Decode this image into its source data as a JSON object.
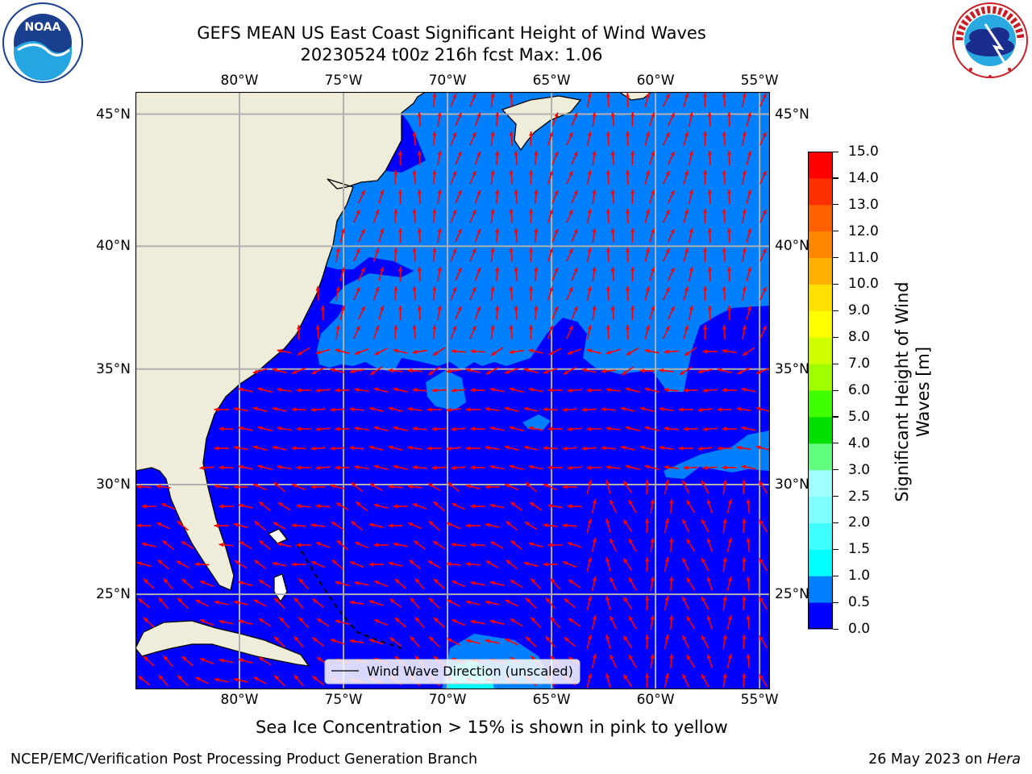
{
  "title": {
    "line1": "GEFS MEAN US East Coast Significant Height of Wind Waves",
    "line2": "20230524 t00z 216h fcst   Max: 1.06"
  },
  "logos": {
    "noaa": {
      "text": "NOAA",
      "ring": "NATIONAL OCEANIC AND ATMOSPHERIC ADMINISTRATION • U.S. DEPARTMENT OF COMMERCE •"
    },
    "nws": {
      "ring": "NATIONAL WEATHER SERVICE"
    }
  },
  "map": {
    "lon_labels": [
      "80°W",
      "75°W",
      "70°W",
      "65°W",
      "60°W",
      "55°W"
    ],
    "lat_labels": [
      "45°N",
      "40°N",
      "35°N",
      "30°N",
      "25°N"
    ],
    "lon_range": [
      -85,
      -54.5
    ],
    "lat_range": [
      20.5,
      45.8
    ],
    "grid": true,
    "colors": {
      "land": "#efedd9",
      "waves_0_0p5": "#0000ff",
      "waves_0p5_1": "#0080ff",
      "waves_1_1p5": "#00ffff",
      "arrow": "#ff0000",
      "gridline": "#b0b0b0"
    },
    "legend": {
      "label": "Wind Wave Direction (unscaled)",
      "position": "bottom-center"
    }
  },
  "colorbar": {
    "label": "Significant Height of Wind Waves [m]",
    "ticks": [
      "0.0",
      "0.5",
      "1.0",
      "1.5",
      "2.0",
      "2.5",
      "3.0",
      "4.0",
      "5.0",
      "6.0",
      "7.0",
      "8.0",
      "9.0",
      "10.0",
      "11.0",
      "12.0",
      "13.0",
      "14.0",
      "15.0"
    ],
    "colors": [
      "#0000ff",
      "#0080ff",
      "#00ffff",
      "#40ffff",
      "#80ffff",
      "#a0ffff",
      "#60ff80",
      "#00e000",
      "#40ff00",
      "#a0ff00",
      "#d0ff00",
      "#ffff00",
      "#ffe000",
      "#ffb000",
      "#ff8800",
      "#ff6000",
      "#ff3000",
      "#ff0000"
    ]
  },
  "caption": "Sea Ice Concentration > 15% is shown in pink to yellow",
  "footer": {
    "left": "NCEP/EMC/Verification Post Processing Product Generation Branch",
    "right_prefix": "26 May 2023 on ",
    "right_host": "Hera"
  }
}
